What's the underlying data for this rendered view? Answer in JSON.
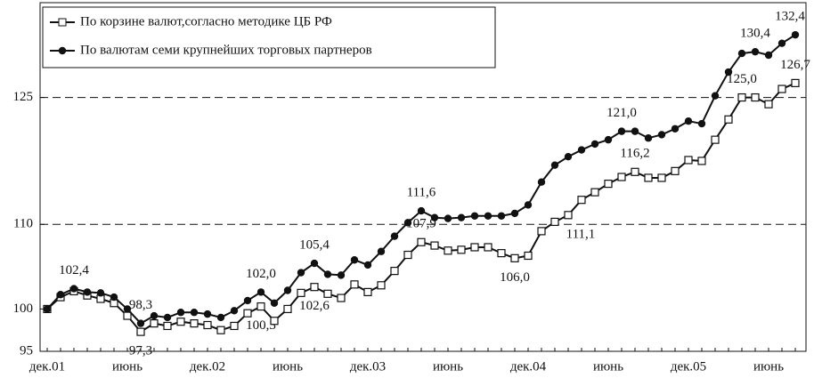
{
  "chart_data": {
    "type": "line",
    "categories": [
      "дек.01",
      null,
      null,
      null,
      null,
      null,
      "июнь",
      null,
      null,
      null,
      null,
      null,
      "дек.02",
      null,
      null,
      null,
      null,
      null,
      "июнь",
      null,
      null,
      null,
      null,
      null,
      "дек.03",
      null,
      null,
      null,
      null,
      null,
      "июнь",
      null,
      null,
      null,
      null,
      null,
      "дек.04",
      null,
      null,
      null,
      null,
      null,
      "июнь",
      null,
      null,
      null,
      null,
      null,
      "дек.05",
      null,
      null,
      null,
      null,
      null,
      "июнь",
      null,
      null
    ],
    "series": [
      {
        "name": "По корзине валют,согласно методике ЦБ РФ",
        "color": "#111111",
        "marker": "square",
        "values": [
          100.0,
          101.4,
          102.1,
          101.6,
          101.2,
          100.7,
          99.2,
          97.3,
          98.3,
          98.0,
          98.5,
          98.3,
          98.1,
          97.5,
          98.0,
          99.5,
          100.3,
          98.6,
          100.0,
          101.9,
          102.6,
          101.8,
          101.3,
          102.9,
          102.0,
          102.8,
          104.5,
          106.4,
          107.9,
          107.5,
          106.9,
          107.0,
          107.3,
          107.3,
          106.6,
          106.0,
          106.3,
          109.2,
          110.3,
          111.1,
          112.9,
          113.8,
          114.8,
          115.6,
          116.2,
          115.5,
          115.5,
          116.3,
          117.6,
          117.5,
          120.0,
          122.4,
          125.0,
          125.0,
          124.2,
          126.0,
          126.7
        ],
        "value_labels": [
          null,
          null,
          null,
          null,
          null,
          null,
          null,
          "97,3",
          null,
          null,
          null,
          null,
          null,
          null,
          null,
          null,
          "100,3",
          null,
          null,
          null,
          "102,6",
          null,
          null,
          null,
          null,
          null,
          null,
          null,
          "107,9",
          null,
          null,
          null,
          null,
          null,
          null,
          "106,0",
          null,
          null,
          null,
          "111,1",
          null,
          null,
          null,
          null,
          "116,2",
          null,
          null,
          null,
          null,
          null,
          null,
          null,
          "125,0",
          null,
          null,
          null,
          "126,7"
        ]
      },
      {
        "name": "По валютам семи крупнейших торговых партнеров",
        "color": "#111111",
        "marker": "circle",
        "values": [
          100.0,
          101.7,
          102.4,
          102.0,
          101.9,
          101.4,
          100.0,
          98.3,
          99.2,
          99.0,
          99.6,
          99.6,
          99.4,
          99.0,
          99.8,
          101.0,
          102.0,
          100.7,
          102.2,
          104.3,
          105.4,
          104.1,
          104.0,
          105.8,
          105.2,
          106.8,
          108.6,
          110.2,
          111.6,
          110.8,
          110.7,
          110.8,
          111.0,
          111.0,
          111.0,
          111.3,
          112.3,
          115.0,
          117.0,
          118.0,
          118.8,
          119.5,
          120.0,
          121.0,
          121.0,
          120.2,
          120.6,
          121.3,
          122.2,
          121.9,
          125.2,
          128.0,
          130.2,
          130.4,
          130.0,
          131.4,
          132.4
        ],
        "value_labels": [
          null,
          null,
          "102,4",
          null,
          null,
          null,
          null,
          "98,3",
          null,
          null,
          null,
          null,
          null,
          null,
          null,
          null,
          "102,0",
          null,
          null,
          null,
          "105,4",
          null,
          null,
          null,
          null,
          null,
          null,
          null,
          "111,6",
          null,
          null,
          null,
          null,
          null,
          null,
          null,
          null,
          null,
          null,
          null,
          null,
          null,
          null,
          "121,0",
          null,
          null,
          null,
          null,
          null,
          null,
          null,
          null,
          null,
          "130,4",
          null,
          null,
          "132,4"
        ]
      }
    ],
    "ylim": [
      95,
      136.2
    ],
    "yticks": [
      95,
      100,
      110,
      125
    ],
    "grid_values": [
      110,
      125
    ],
    "legend": "upper left"
  }
}
